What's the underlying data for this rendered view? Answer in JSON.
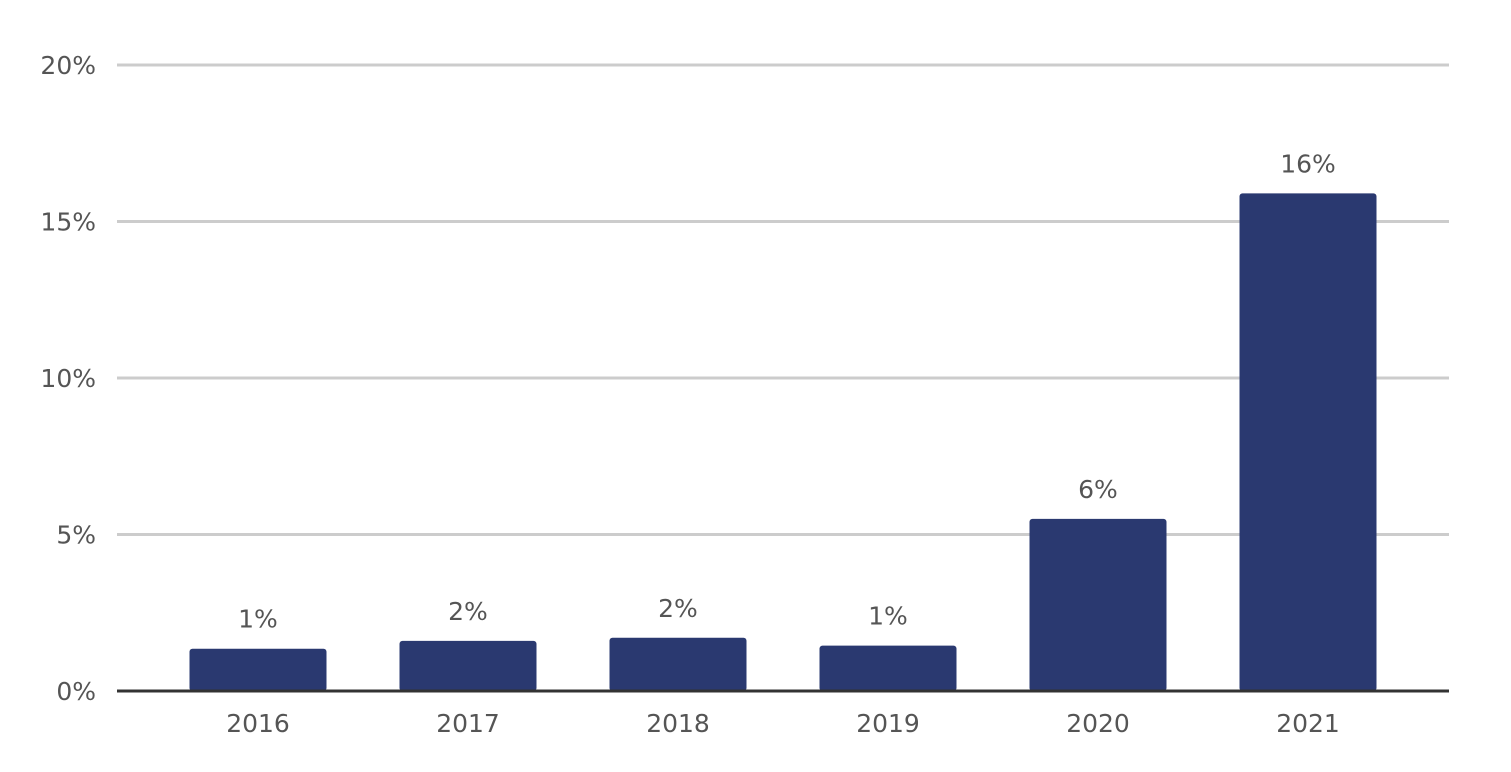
{
  "chart_data": {
    "type": "bar",
    "categories": [
      "2016",
      "2017",
      "2018",
      "2019",
      "2020",
      "2021"
    ],
    "values": [
      1.35,
      1.6,
      1.7,
      1.45,
      5.5,
      15.9
    ],
    "value_labels": [
      "1%",
      "2%",
      "2%",
      "1%",
      "6%",
      "16%"
    ],
    "color": "#2a3970",
    "ylim": [
      0,
      20
    ],
    "yticks": [
      {
        "value": 0,
        "label": "0%"
      },
      {
        "value": 5,
        "label": "5%"
      },
      {
        "value": 10,
        "label": "10%"
      },
      {
        "value": 15,
        "label": "15%"
      },
      {
        "value": 20,
        "label": "20%"
      }
    ],
    "grid": true
  }
}
